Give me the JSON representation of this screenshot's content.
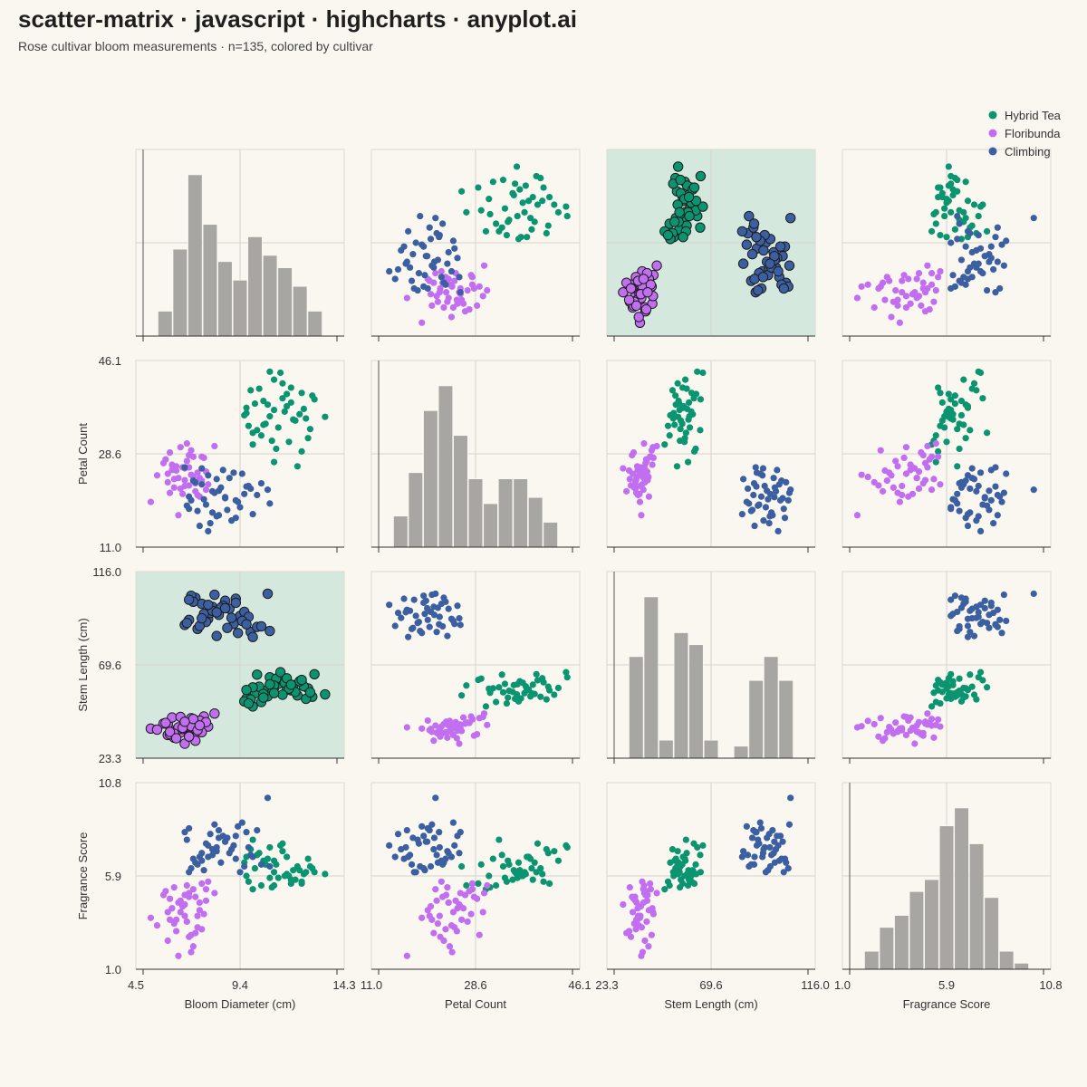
{
  "title": "scatter-matrix · javascript · highcharts · anyplot.ai",
  "subtitle": "Rose cultivar bloom measurements · n=135, colored by cultivar",
  "chart_data": {
    "type": "scatter",
    "variables": [
      {
        "key": "bloom",
        "label": "Bloom Diameter (cm)",
        "ticks": [
          "4.5",
          "9.4",
          "14.3"
        ],
        "range": [
          4.5,
          14.3
        ]
      },
      {
        "key": "petal",
        "label": "Petal Count",
        "ticks": [
          "11.0",
          "28.6",
          "46.1"
        ],
        "range": [
          11.0,
          46.1
        ]
      },
      {
        "key": "stem",
        "label": "Stem Length (cm)",
        "ticks": [
          "23.3",
          "69.6",
          "116.0"
        ],
        "range": [
          23.3,
          116.0
        ]
      },
      {
        "key": "fragrance",
        "label": "Fragrance Score",
        "ticks": [
          "1.0",
          "5.9",
          "10.8"
        ],
        "range": [
          1.0,
          10.8
        ]
      }
    ],
    "legend_position": "top-right",
    "highlighted_panels": [
      [
        0,
        2
      ],
      [
        2,
        0
      ]
    ],
    "highlight_color": "#d4e8de",
    "series": [
      {
        "name": "Hybrid Tea",
        "color": "#0a9470",
        "points": [
          [
            10.1,
            38.0,
            55.5,
            6.3
          ],
          [
            11.0,
            42.5,
            58.2,
            6.7
          ],
          [
            12.3,
            40.0,
            61.0,
            5.6
          ],
          [
            9.7,
            36.2,
            53.0,
            5.9
          ],
          [
            10.8,
            44.0,
            63.5,
            7.4
          ],
          [
            11.6,
            37.5,
            57.4,
            6.9
          ],
          [
            12.9,
            38.8,
            65.0,
            6.1
          ],
          [
            10.4,
            32.0,
            51.2,
            5.4
          ],
          [
            11.9,
            35.0,
            59.6,
            6.2
          ],
          [
            13.4,
            35.5,
            55.0,
            6.0
          ],
          [
            10.0,
            30.3,
            49.0,
            5.2
          ],
          [
            11.2,
            33.5,
            60.2,
            5.8
          ],
          [
            12.6,
            31.5,
            58.0,
            6.8
          ],
          [
            9.9,
            40.5,
            52.5,
            7.3
          ],
          [
            10.6,
            34.2,
            56.8,
            6.5
          ],
          [
            11.4,
            39.0,
            62.0,
            7.6
          ],
          [
            12.1,
            26.2,
            54.5,
            6.4
          ],
          [
            10.2,
            33.0,
            64.8,
            7.0
          ],
          [
            11.8,
            41.0,
            57.0,
            5.5
          ],
          [
            12.4,
            37.0,
            59.0,
            6.0
          ],
          [
            9.6,
            35.8,
            51.5,
            6.6
          ],
          [
            10.9,
            31.0,
            55.8,
            5.3
          ],
          [
            11.5,
            36.5,
            60.8,
            5.9
          ],
          [
            12.8,
            39.5,
            53.8,
            6.3
          ],
          [
            10.3,
            40.8,
            58.8,
            7.1
          ],
          [
            11.1,
            29.5,
            62.8,
            6.5
          ],
          [
            12.0,
            34.8,
            56.2,
            5.7
          ],
          [
            10.7,
            37.8,
            54.0,
            6.8
          ],
          [
            11.3,
            43.8,
            66.0,
            7.5
          ],
          [
            9.8,
            33.8,
            50.5,
            5.6
          ],
          [
            12.2,
            36.0,
            61.5,
            6.2
          ],
          [
            11.7,
            30.8,
            57.8,
            5.9
          ],
          [
            10.5,
            38.5,
            55.2,
            6.6
          ],
          [
            11.0,
            27.0,
            59.4,
            5.4
          ],
          [
            12.5,
            35.2,
            52.8,
            6.1
          ],
          [
            10.0,
            32.5,
            58.5,
            7.8
          ],
          [
            11.6,
            39.8,
            63.0,
            6.0
          ],
          [
            12.7,
            33.2,
            56.0,
            6.4
          ],
          [
            10.8,
            35.6,
            60.0,
            5.8
          ],
          [
            11.4,
            41.8,
            54.8,
            7.2
          ],
          [
            9.7,
            37.2,
            57.2,
            6.9
          ],
          [
            12.3,
            29.0,
            62.2,
            5.5
          ],
          [
            11.0,
            36.8,
            55.6,
            6.1
          ],
          [
            10.5,
            34.0,
            53.4,
            6.7
          ],
          [
            11.8,
            38.2,
            59.8,
            5.7
          ]
        ]
      },
      {
        "name": "Floribunda",
        "color": "#c16ef0",
        "points": [
          [
            6.5,
            24.0,
            36.5,
            4.5
          ],
          [
            7.0,
            26.0,
            40.0,
            5.0
          ],
          [
            6.8,
            22.5,
            38.2,
            3.8
          ],
          [
            7.6,
            28.0,
            42.5,
            5.5
          ],
          [
            6.2,
            25.5,
            37.0,
            4.2
          ],
          [
            7.3,
            23.0,
            35.8,
            4.8
          ],
          [
            6.9,
            27.2,
            41.0,
            3.5
          ],
          [
            7.8,
            21.8,
            39.5,
            5.2
          ],
          [
            6.0,
            24.8,
            34.8,
            4.0
          ],
          [
            7.1,
            29.2,
            43.2,
            2.8
          ],
          [
            6.6,
            22.0,
            36.0,
            4.6
          ],
          [
            7.4,
            25.0,
            38.8,
            3.2
          ],
          [
            5.8,
            26.8,
            40.5,
            4.9
          ],
          [
            6.3,
            23.8,
            33.5,
            5.3
          ],
          [
            7.7,
            27.8,
            44.0,
            3.9
          ],
          [
            6.7,
            21.0,
            37.8,
            4.3
          ],
          [
            7.2,
            24.2,
            41.8,
            2.2
          ],
          [
            6.1,
            28.8,
            35.2,
            4.7
          ],
          [
            7.9,
            22.8,
            39.0,
            5.6
          ],
          [
            6.4,
            26.2,
            36.8,
            3.6
          ],
          [
            7.5,
            20.5,
            42.0,
            4.1
          ],
          [
            5.2,
            19.5,
            38.0,
            3.7
          ],
          [
            6.8,
            25.8,
            30.5,
            4.4
          ],
          [
            8.2,
            30.0,
            45.5,
            5.0
          ],
          [
            6.0,
            23.2,
            40.2,
            2.5
          ],
          [
            7.0,
            28.3,
            34.5,
            4.8
          ],
          [
            5.5,
            24.5,
            37.5,
            3.3
          ],
          [
            6.9,
            30.5,
            39.8,
            5.4
          ],
          [
            7.3,
            21.5,
            32.0,
            2.9
          ],
          [
            6.2,
            26.5,
            43.5,
            4.2
          ],
          [
            7.6,
            23.5,
            36.2,
            3.1
          ],
          [
            6.5,
            17.0,
            38.6,
            1.7
          ],
          [
            7.8,
            25.2,
            41.2,
            4.6
          ],
          [
            6.3,
            22.2,
            35.5,
            3.4
          ],
          [
            7.1,
            24.6,
            39.2,
            1.9
          ],
          [
            6.6,
            29.8,
            43.8,
            4.0
          ],
          [
            7.4,
            20.8,
            37.2,
            3.8
          ],
          [
            5.9,
            27.5,
            40.8,
            5.1
          ],
          [
            7.0,
            22.6,
            34.0,
            2.7
          ],
          [
            6.7,
            26.0,
            38.4,
            4.3
          ],
          [
            7.2,
            28.0,
            42.8,
            5.2
          ],
          [
            6.1,
            21.2,
            36.4,
            3.6
          ],
          [
            7.5,
            24.0,
            39.6,
            4.5
          ],
          [
            6.4,
            25.4,
            33.2,
            3.0
          ],
          [
            6.8,
            23.6,
            41.4,
            4.9
          ]
        ]
      },
      {
        "name": "Climbing",
        "color": "#3b5fa0",
        "points": [
          [
            7.3,
            23.2,
            103.0,
            6.6
          ],
          [
            8.1,
            21.5,
            98.5,
            7.3
          ],
          [
            9.4,
            18.5,
            94.0,
            6.1
          ],
          [
            6.8,
            26.0,
            89.5,
            8.2
          ],
          [
            8.7,
            20.2,
            101.5,
            7.7
          ],
          [
            7.9,
            24.5,
            92.5,
            6.9
          ],
          [
            9.9,
            22.0,
            86.0,
            7.0
          ],
          [
            8.4,
            17.0,
            97.0,
            8.3
          ],
          [
            7.1,
            19.8,
            104.0,
            6.3
          ],
          [
            9.1,
            25.0,
            90.0,
            7.5
          ],
          [
            8.0,
            15.5,
            95.5,
            8.1
          ],
          [
            7.6,
            22.8,
            100.0,
            6.7
          ],
          [
            8.8,
            18.0,
            88.0,
            7.9
          ],
          [
            9.6,
            21.0,
            96.0,
            6.4
          ],
          [
            7.0,
            20.5,
            92.0,
            8.4
          ],
          [
            8.3,
            23.8,
            84.0,
            7.2
          ],
          [
            9.2,
            16.5,
            102.5,
            6.8
          ],
          [
            7.8,
            19.0,
            91.0,
            7.6
          ],
          [
            8.6,
            25.5,
            99.0,
            8.0
          ],
          [
            7.4,
            17.8,
            87.5,
            6.5
          ],
          [
            9.8,
            22.5,
            93.5,
            7.4
          ],
          [
            8.2,
            21.2,
            104.5,
            8.6
          ],
          [
            7.5,
            15.0,
            89.0,
            6.9
          ],
          [
            8.9,
            24.0,
            97.5,
            7.1
          ],
          [
            9.3,
            19.5,
            85.5,
            8.5
          ],
          [
            7.7,
            20.0,
            95.0,
            6.2
          ],
          [
            10.7,
            21.8,
            105.0,
            10.0
          ],
          [
            6.9,
            18.8,
            90.5,
            7.8
          ],
          [
            8.5,
            22.2,
            98.0,
            6.6
          ],
          [
            9.0,
            16.0,
            93.0,
            7.3
          ],
          [
            10.2,
            20.8,
            88.5,
            8.3
          ],
          [
            7.2,
            23.5,
            101.0,
            6.8
          ],
          [
            8.1,
            17.5,
            96.5,
            7.0
          ],
          [
            9.5,
            24.8,
            91.5,
            8.7
          ],
          [
            7.9,
            14.0,
            99.5,
            7.5
          ],
          [
            10.8,
            19.2,
            86.5,
            6.4
          ],
          [
            8.4,
            21.6,
            94.5,
            7.9
          ],
          [
            7.0,
            18.2,
            102.0,
            6.1
          ],
          [
            9.7,
            22.4,
            89.8,
            8.2
          ],
          [
            8.7,
            20.4,
            97.8,
            7.7
          ],
          [
            10.0,
            17.2,
            83.5,
            6.9
          ],
          [
            7.6,
            25.8,
            92.8,
            7.1
          ],
          [
            9.2,
            19.8,
            100.5,
            8.0
          ],
          [
            8.3,
            16.8,
            95.8,
            7.4
          ],
          [
            10.4,
            23.0,
            88.8,
            6.5
          ]
        ]
      }
    ]
  }
}
